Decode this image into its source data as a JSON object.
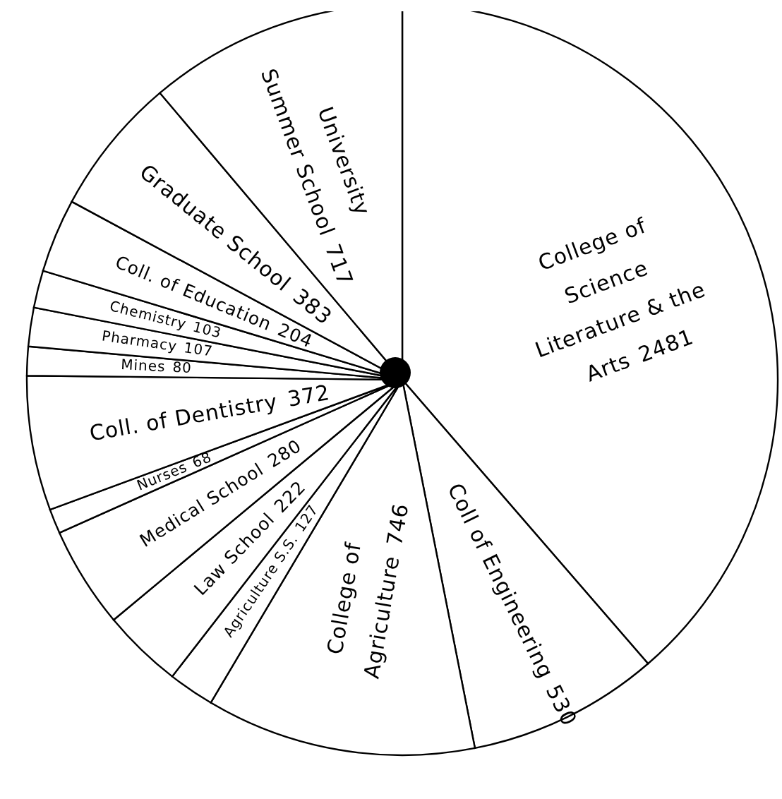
{
  "chart_data": {
    "type": "pie",
    "categories": [
      "College of Science Literature & the Arts",
      "Coll of Engineering",
      "College of Agriculture",
      "Agriculture S.S.",
      "Law School",
      "Medical School",
      "Nurses",
      "Coll. of Dentistry",
      "Mines",
      "Pharmacy",
      "Chemistry",
      "Coll. of Education",
      "Graduate School",
      "University Summer School"
    ],
    "values": [
      2481,
      530,
      746,
      127,
      222,
      280,
      68,
      372,
      80,
      107,
      103,
      204,
      383,
      717
    ],
    "colors": [
      "#ffffff",
      "#ffffff",
      "#ffffff",
      "#ffffff",
      "#ffffff",
      "#ffffff",
      "#ffffff",
      "#ffffff",
      "#ffffff",
      "#ffffff",
      "#ffffff",
      "#ffffff",
      "#ffffff",
      "#ffffff"
    ],
    "data_labels": true,
    "legend": false
  }
}
